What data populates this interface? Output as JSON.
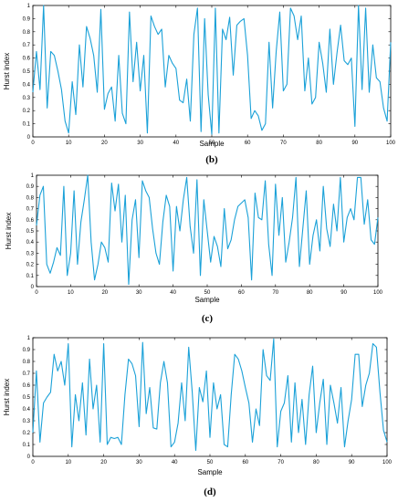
{
  "colors": {
    "series": "#1ba1d8",
    "axis": "#000000"
  },
  "chart_data": [
    {
      "type": "line",
      "panel_label": "(b)",
      "xlabel": "Sample",
      "ylabel": "Hurst index",
      "xlim": [
        0,
        100
      ],
      "ylim": [
        0,
        1
      ],
      "xticks": [
        0,
        10,
        20,
        30,
        40,
        50,
        60,
        70,
        80,
        90,
        100
      ],
      "yticks": [
        0,
        0.1,
        0.2,
        0.3,
        0.4,
        0.5,
        0.6,
        0.7,
        0.8,
        0.9,
        1
      ],
      "ytick_labels": [
        "0",
        "0.1",
        "0.2",
        "0.3",
        "0.4",
        "0.5",
        "0.6",
        "0.7",
        "0.8",
        "0.9",
        "1"
      ],
      "grid": false,
      "series": [
        {
          "values": [
            0.34,
            0.65,
            0.36,
            1.0,
            0.22,
            0.65,
            0.62,
            0.5,
            0.36,
            0.12,
            0.03,
            0.42,
            0.17,
            0.7,
            0.38,
            0.84,
            0.75,
            0.62,
            0.34,
            0.97,
            0.21,
            0.33,
            0.38,
            0.12,
            0.62,
            0.18,
            0.1,
            0.95,
            0.42,
            0.72,
            0.35,
            0.62,
            0.03,
            0.92,
            0.84,
            0.78,
            0.82,
            0.38,
            0.62,
            0.56,
            0.52,
            0.28,
            0.26,
            0.44,
            0.12,
            0.78,
            0.98,
            0.04,
            0.9,
            0.32,
            0.02,
            0.98,
            0.03,
            0.82,
            0.74,
            0.91,
            0.47,
            0.85,
            0.88,
            0.9,
            0.62,
            0.14,
            0.2,
            0.16,
            0.05,
            0.1,
            0.72,
            0.22,
            0.65,
            0.95,
            0.35,
            0.4,
            0.98,
            0.92,
            0.74,
            0.92,
            0.35,
            0.6,
            0.25,
            0.3,
            0.72,
            0.56,
            0.34,
            0.82,
            0.4,
            0.64,
            0.85,
            0.58,
            0.55,
            0.6,
            0.08,
            1.0,
            0.36,
            0.98,
            0.34,
            0.7,
            0.45,
            0.42,
            0.22,
            0.12,
            0.72
          ]
        }
      ]
    },
    {
      "type": "line",
      "panel_label": "(c)",
      "xlabel": "Sample",
      "ylabel": "Hurst index",
      "xlim": [
        0,
        100
      ],
      "ylim": [
        0,
        1
      ],
      "xticks": [
        0,
        10,
        20,
        30,
        40,
        50,
        60,
        70,
        80,
        90,
        100
      ],
      "yticks": [
        0,
        0.1,
        0.2,
        0.3,
        0.4,
        0.5,
        0.6,
        0.7,
        0.8,
        0.9,
        1
      ],
      "ytick_labels": [
        "0",
        "0.1",
        "0.2",
        "0.3",
        "0.4",
        "0.5",
        "0.6",
        "0.7",
        "0.8",
        "0.9",
        "1"
      ],
      "grid": false,
      "series": [
        {
          "values": [
            0.55,
            0.82,
            0.9,
            0.2,
            0.12,
            0.22,
            0.35,
            0.28,
            0.9,
            0.1,
            0.3,
            0.86,
            0.2,
            0.58,
            0.78,
            1.0,
            0.4,
            0.06,
            0.2,
            0.4,
            0.35,
            0.22,
            0.93,
            0.68,
            0.92,
            0.4,
            0.82,
            0.02,
            0.6,
            0.78,
            0.26,
            0.95,
            0.86,
            0.8,
            0.52,
            0.3,
            0.2,
            0.58,
            0.82,
            0.72,
            0.14,
            0.72,
            0.5,
            0.78,
            0.98,
            0.54,
            0.3,
            0.96,
            0.1,
            0.78,
            0.5,
            0.22,
            0.45,
            0.36,
            0.18,
            0.7,
            0.34,
            0.42,
            0.6,
            0.72,
            0.75,
            0.78,
            0.62,
            0.06,
            0.84,
            0.62,
            0.6,
            0.95,
            0.38,
            0.1,
            0.92,
            0.46,
            0.8,
            0.22,
            0.4,
            0.62,
            0.98,
            0.18,
            0.52,
            0.86,
            0.2,
            0.46,
            0.6,
            0.32,
            0.9,
            0.52,
            0.36,
            0.74,
            0.5,
            0.98,
            0.4,
            0.62,
            0.7,
            0.6,
            0.98,
            0.98,
            0.56,
            0.78,
            0.42,
            0.38,
            0.62
          ]
        }
      ]
    },
    {
      "type": "line",
      "panel_label": "(d)",
      "xlabel": "Sample",
      "ylabel": "Hurst index",
      "xlim": [
        0,
        100
      ],
      "ylim": [
        0,
        1
      ],
      "xticks": [
        0,
        10,
        20,
        30,
        40,
        50,
        60,
        70,
        80,
        90,
        100
      ],
      "yticks": [
        0,
        0.1,
        0.2,
        0.3,
        0.4,
        0.5,
        0.6,
        0.7,
        0.8,
        0.9,
        1
      ],
      "ytick_labels": [
        "0",
        "0.1",
        "0.2",
        "0.3",
        "0.4",
        "0.5",
        "0.6",
        "0.7",
        "0.8",
        "0.9",
        "1"
      ],
      "grid": false,
      "series": [
        {
          "values": [
            0.2,
            0.72,
            0.12,
            0.45,
            0.5,
            0.54,
            0.86,
            0.72,
            0.8,
            0.6,
            0.95,
            0.08,
            0.52,
            0.3,
            0.62,
            0.18,
            0.82,
            0.4,
            0.6,
            0.12,
            0.95,
            0.1,
            0.16,
            0.15,
            0.16,
            0.1,
            0.52,
            0.82,
            0.78,
            0.68,
            0.25,
            0.96,
            0.36,
            0.58,
            0.24,
            0.23,
            0.62,
            0.8,
            0.62,
            0.08,
            0.12,
            0.28,
            0.62,
            0.3,
            0.92,
            0.54,
            0.05,
            0.58,
            0.46,
            0.72,
            0.16,
            0.62,
            0.4,
            0.52,
            0.1,
            0.08,
            0.52,
            0.86,
            0.82,
            0.72,
            0.58,
            0.45,
            0.12,
            0.4,
            0.26,
            0.9,
            0.68,
            0.64,
            0.99,
            0.08,
            0.38,
            0.45,
            0.68,
            0.12,
            0.62,
            0.2,
            0.48,
            0.1,
            0.52,
            0.76,
            0.2,
            0.45,
            0.65,
            0.1,
            0.6,
            0.45,
            0.28,
            0.58,
            0.08,
            0.3,
            0.48,
            0.86,
            0.86,
            0.42,
            0.6,
            0.7,
            0.95,
            0.92,
            0.54,
            0.22,
            0.12
          ]
        }
      ]
    }
  ]
}
